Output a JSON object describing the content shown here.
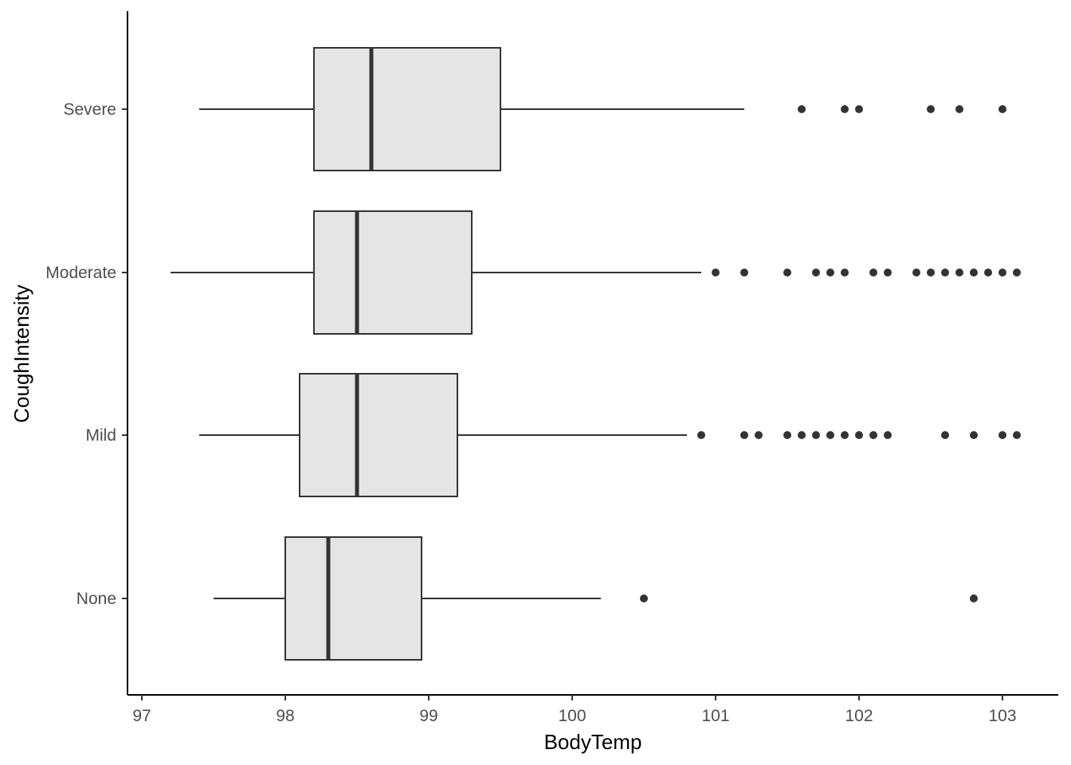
{
  "chart_data": {
    "type": "boxplot",
    "orientation": "horizontal",
    "title": "",
    "xlabel": "BodyTemp",
    "ylabel": "CoughIntensity",
    "xlim": [
      96.9,
      103.4
    ],
    "x_ticks": [
      97,
      98,
      99,
      100,
      101,
      102,
      103
    ],
    "grid": false,
    "colors": {
      "box_fill": "#e5e5e5",
      "stroke": "#333333",
      "axis": "#000000",
      "tick_text": "#4d4d4d"
    },
    "categories": [
      "None",
      "Mild",
      "Moderate",
      "Severe"
    ],
    "boxes": [
      {
        "category": "None",
        "whisker_low": 97.5,
        "q1": 98.0,
        "median": 98.3,
        "q3": 98.95,
        "whisker_high": 100.2,
        "outliers": [
          100.5,
          102.8
        ]
      },
      {
        "category": "Mild",
        "whisker_low": 97.4,
        "q1": 98.1,
        "median": 98.5,
        "q3": 99.2,
        "whisker_high": 100.8,
        "outliers": [
          100.9,
          101.2,
          101.3,
          101.5,
          101.6,
          101.7,
          101.8,
          101.9,
          102.0,
          102.1,
          102.2,
          102.6,
          102.8,
          103.0,
          103.1
        ]
      },
      {
        "category": "Moderate",
        "whisker_low": 97.2,
        "q1": 98.2,
        "median": 98.5,
        "q3": 99.3,
        "whisker_high": 100.9,
        "outliers": [
          101.0,
          101.2,
          101.5,
          101.7,
          101.8,
          101.9,
          102.1,
          102.2,
          102.4,
          102.5,
          102.6,
          102.7,
          102.8,
          102.9,
          103.0,
          103.1
        ]
      },
      {
        "category": "Severe",
        "whisker_low": 97.4,
        "q1": 98.2,
        "median": 98.6,
        "q3": 99.5,
        "whisker_high": 101.2,
        "outliers": [
          101.6,
          101.9,
          102.0,
          102.5,
          102.7,
          103.0
        ]
      }
    ]
  }
}
